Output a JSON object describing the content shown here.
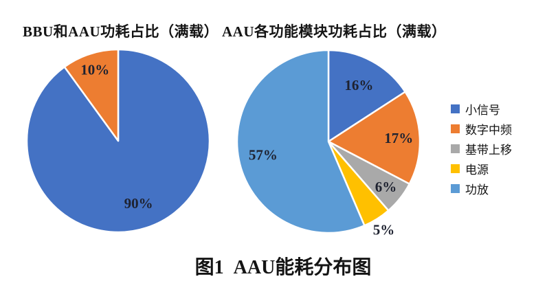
{
  "figure": {
    "caption": "图1  AAU能耗分布图"
  },
  "chart_data": [
    {
      "type": "pie",
      "title": "BBU和AAU功耗占比（满载）",
      "start_angle_deg": 0,
      "direction": "clockwise",
      "unit": "%",
      "slices": [
        {
          "value": 90,
          "display": "90%",
          "color": "#4472C4",
          "label_pos": "inside",
          "label_frac": 0.72
        },
        {
          "value": 10,
          "display": "10%",
          "color": "#ED7D31",
          "label_pos": "inside",
          "label_frac": 0.82
        }
      ]
    },
    {
      "type": "pie",
      "title": "AAU各功能模块功耗占比（满载）",
      "start_angle_deg": 0,
      "direction": "clockwise",
      "unit": "%",
      "legend_position": "right",
      "slices": [
        {
          "name": "小信号",
          "value": 16,
          "display": "16%",
          "color": "#4472C4",
          "label_pos": "inside",
          "label_frac": 0.7
        },
        {
          "name": "数字中频",
          "value": 17,
          "display": "17%",
          "color": "#ED7D31",
          "label_pos": "inside",
          "label_frac": 0.77
        },
        {
          "name": "基带上移",
          "value": 6,
          "display": "6%",
          "color": "#A9A9A9",
          "label_pos": "inside",
          "label_frac": 0.8
        },
        {
          "name": "电源",
          "value": 5,
          "display": "5%",
          "color": "#FFC000",
          "label_pos": "outside",
          "label_frac": 1.14
        },
        {
          "name": "功放",
          "value": 57,
          "display": "57%",
          "color": "#5B9BD5",
          "label_pos": "inside",
          "label_frac": 0.73
        }
      ]
    }
  ],
  "legend": {
    "items": [
      {
        "label": "小信号",
        "color": "#4472C4"
      },
      {
        "label": "数字中频",
        "color": "#ED7D31"
      },
      {
        "label": "基带上移",
        "color": "#A9A9A9"
      },
      {
        "label": "电源",
        "color": "#FFC000"
      },
      {
        "label": "功放",
        "color": "#5B9BD5"
      }
    ]
  },
  "styles": {
    "slice_label_color": "#1E2230"
  }
}
